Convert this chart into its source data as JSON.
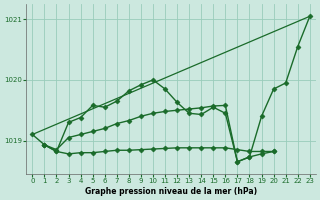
{
  "bg_color": "#cce8df",
  "grid_color": "#99ccbb",
  "line_color": "#1a6b2a",
  "xlabel": "Graphe pression niveau de la mer (hPa)",
  "ylim": [
    1018.45,
    1021.25
  ],
  "xlim": [
    -0.5,
    23.5
  ],
  "yticks": [
    1019,
    1020,
    1021
  ],
  "xticks": [
    0,
    1,
    2,
    3,
    4,
    5,
    6,
    7,
    8,
    9,
    10,
    11,
    12,
    13,
    14,
    15,
    16,
    17,
    18,
    19,
    20,
    21,
    22,
    23
  ],
  "series": [
    {
      "x": [
        0,
        23
      ],
      "y": [
        1019.1,
        1021.05
      ],
      "marker": null,
      "linewidth": 0.9
    },
    {
      "x": [
        0,
        1,
        2,
        3,
        4,
        5,
        6,
        7,
        8,
        9,
        10,
        11,
        12,
        13,
        14,
        15,
        16,
        17,
        18,
        19,
        20,
        21,
        22,
        23
      ],
      "y": [
        1019.1,
        1018.93,
        1018.82,
        1019.3,
        1019.38,
        1019.58,
        1019.55,
        1019.65,
        1019.82,
        1019.92,
        1020.0,
        1019.85,
        1019.63,
        1019.45,
        1019.43,
        1019.55,
        1019.45,
        1018.65,
        1018.73,
        1019.4,
        1019.85,
        1019.95,
        1020.55,
        1021.05
      ],
      "marker": "D",
      "markersize": 2.5,
      "linewidth": 1.0
    },
    {
      "x": [
        1,
        2,
        3,
        4,
        5,
        6,
        7,
        8,
        9,
        10,
        11,
        12,
        13,
        14,
        15,
        16,
        17,
        18,
        19,
        20
      ],
      "y": [
        1018.93,
        1018.82,
        1018.78,
        1018.8,
        1018.8,
        1018.82,
        1018.84,
        1018.84,
        1018.85,
        1018.86,
        1018.87,
        1018.88,
        1018.88,
        1018.88,
        1018.88,
        1018.88,
        1018.85,
        1018.82,
        1018.82,
        1018.82
      ],
      "marker": "D",
      "markersize": 2.5,
      "linewidth": 1.0
    },
    {
      "x": [
        1,
        2,
        3,
        4,
        5,
        6,
        7,
        8,
        9,
        10,
        11,
        12,
        13,
        14,
        15,
        16,
        17,
        18,
        19,
        20
      ],
      "y": [
        1018.93,
        1018.85,
        1019.05,
        1019.1,
        1019.15,
        1019.2,
        1019.28,
        1019.33,
        1019.4,
        1019.45,
        1019.48,
        1019.5,
        1019.52,
        1019.54,
        1019.57,
        1019.58,
        1018.65,
        1018.73,
        1018.78,
        1018.82
      ],
      "marker": "D",
      "markersize": 2.5,
      "linewidth": 1.0
    }
  ]
}
